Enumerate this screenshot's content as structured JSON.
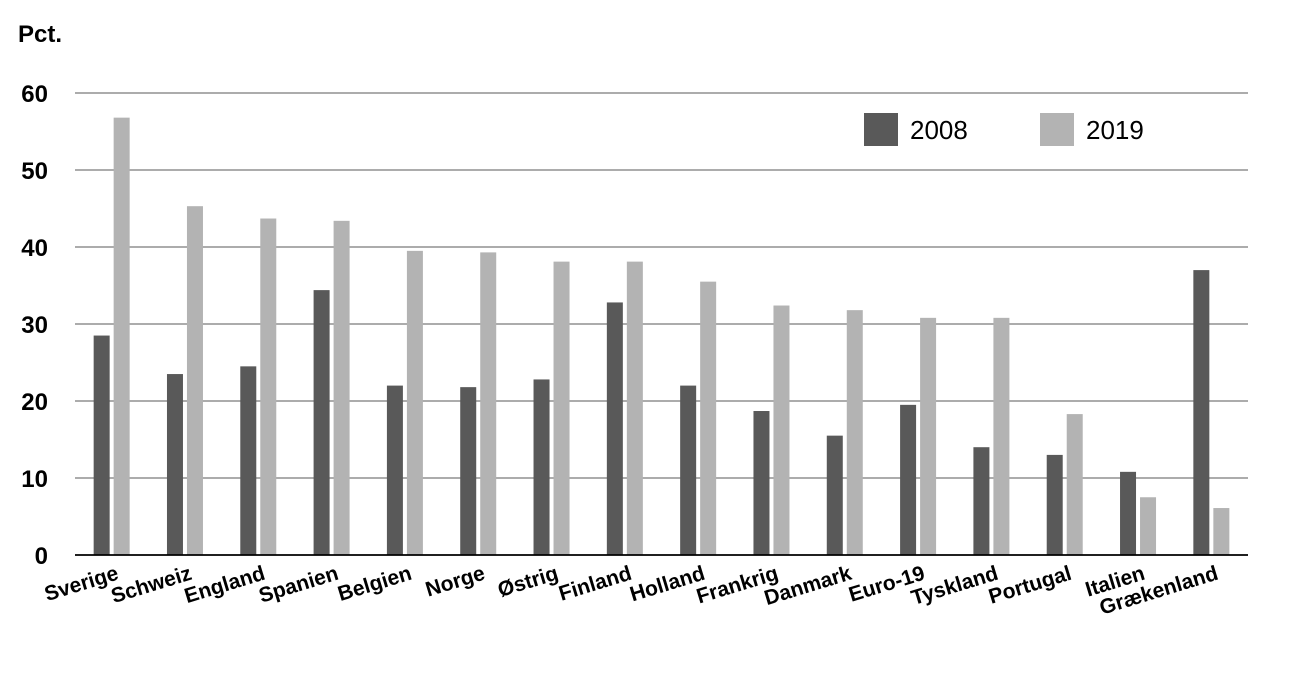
{
  "chart_data": {
    "type": "bar",
    "ylabel": "Pct.",
    "ylim": [
      0,
      60
    ],
    "yticks": [
      "0",
      "10",
      "20",
      "30",
      "40",
      "50",
      "60"
    ],
    "grid": true,
    "legend_position": "top-right",
    "categories": [
      "Sverige",
      "Schweiz",
      "England",
      "Spanien",
      "Belgien",
      "Norge",
      "Østrig",
      "Finland",
      "Holland",
      "Frankrig",
      "Danmark",
      "Euro-19",
      "Tyskland",
      "Portugal",
      "Italien",
      "Grækenland"
    ],
    "series": [
      {
        "name": "2008",
        "color": "#595959",
        "values": [
          28.5,
          23.5,
          24.5,
          34.4,
          22.0,
          21.8,
          22.8,
          32.8,
          22.0,
          18.7,
          15.5,
          19.5,
          14.0,
          13.0,
          10.8,
          37.0
        ]
      },
      {
        "name": "2019",
        "color": "#b3b3b3",
        "values": [
          56.8,
          45.3,
          43.7,
          43.4,
          39.5,
          39.3,
          38.1,
          38.1,
          35.5,
          32.4,
          31.8,
          30.8,
          30.8,
          18.3,
          7.5,
          6.1
        ]
      }
    ]
  }
}
